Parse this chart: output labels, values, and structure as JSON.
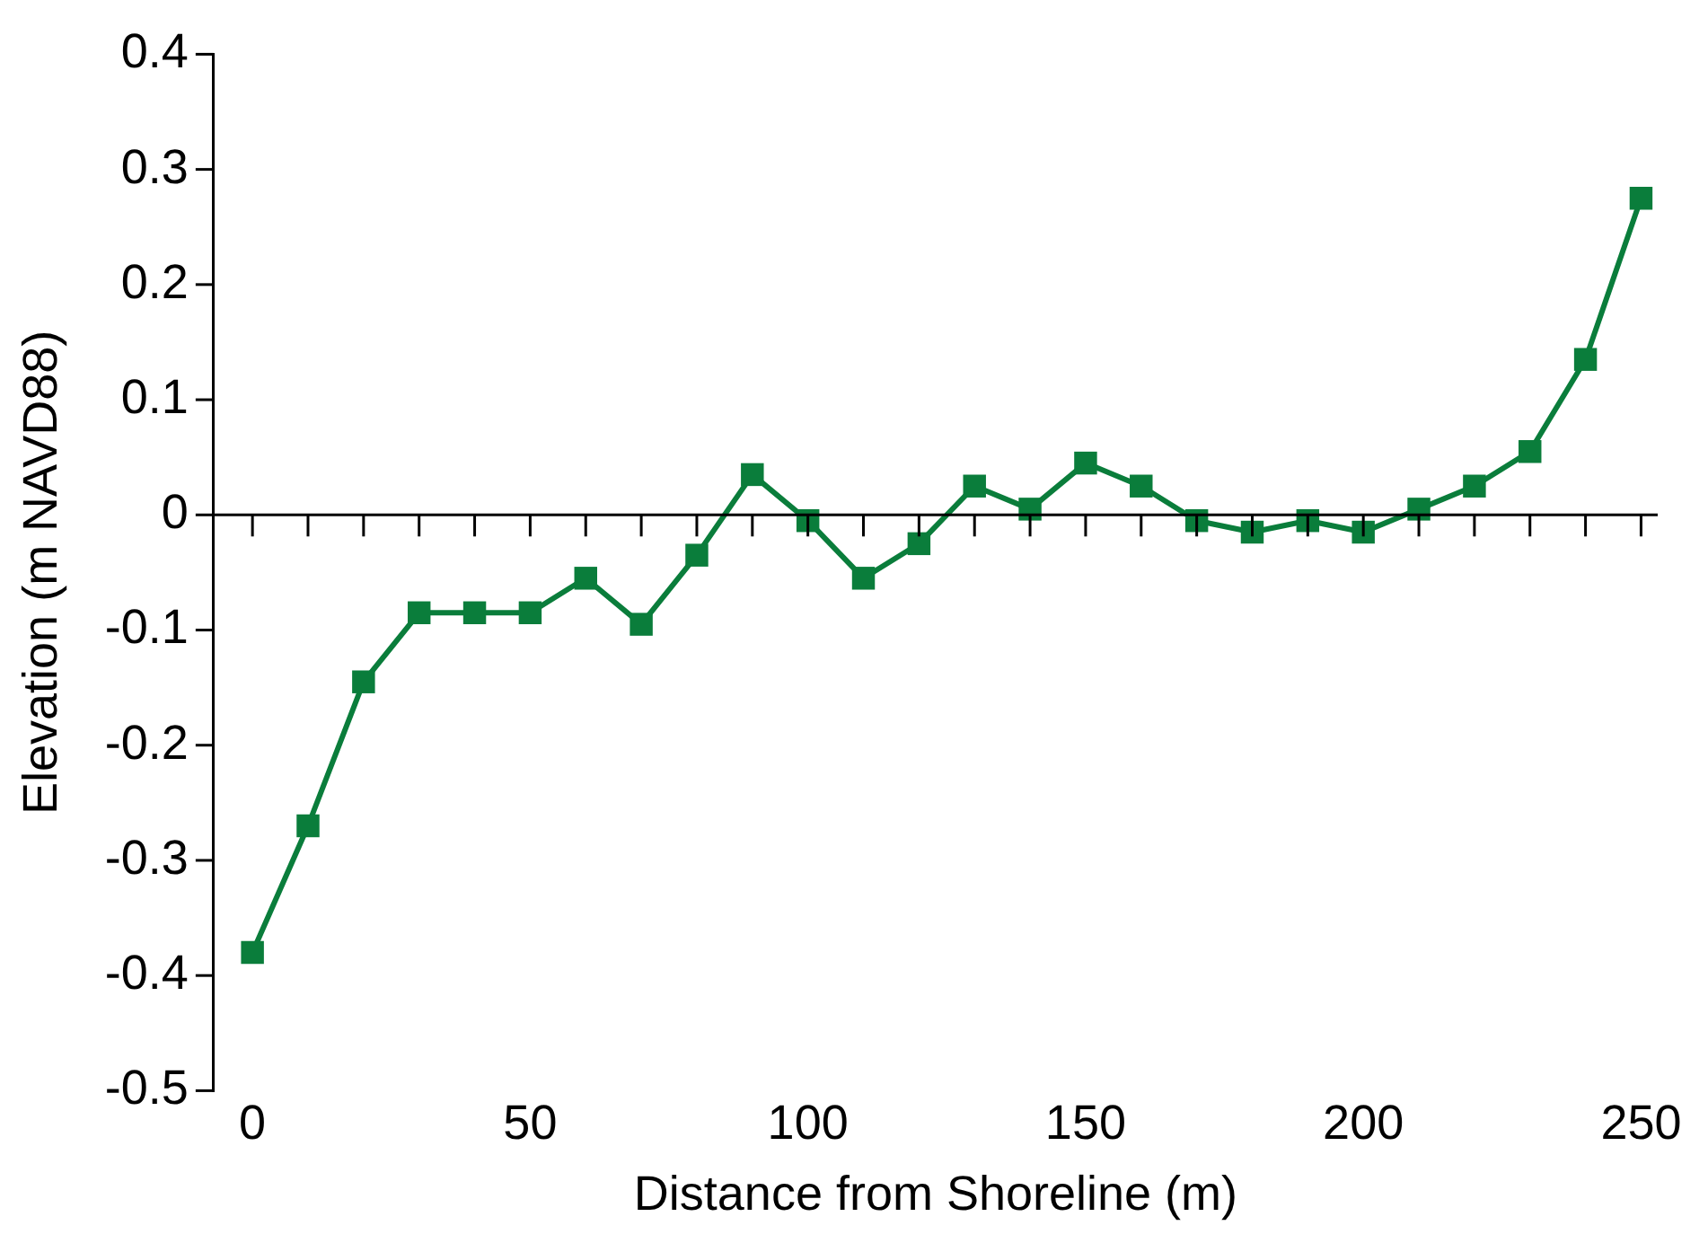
{
  "chart_data": {
    "type": "line",
    "xlabel": "Distance from Shoreline (m)",
    "ylabel": "Elevation (m NAVD88)",
    "x": [
      0,
      10,
      20,
      30,
      40,
      50,
      60,
      70,
      80,
      90,
      100,
      110,
      120,
      130,
      140,
      150,
      160,
      170,
      180,
      190,
      200,
      210,
      220,
      230,
      240,
      250
    ],
    "series": [
      {
        "color": "#0a7d3b",
        "values": [
          -0.38,
          -0.27,
          -0.145,
          -0.085,
          -0.085,
          -0.085,
          -0.055,
          -0.095,
          -0.035,
          0.035,
          -0.005,
          -0.055,
          -0.025,
          0.025,
          0.005,
          0.045,
          0.025,
          -0.005,
          -0.015,
          -0.005,
          -0.015,
          0.005,
          0.025,
          0.055,
          0.135,
          0.275
        ]
      }
    ],
    "xlim": [
      -7,
      253
    ],
    "xticks": [
      0,
      {
        "value": 10,
        "label": null
      },
      {
        "value": 20,
        "label": null
      },
      {
        "value": 30,
        "label": null
      },
      {
        "value": 40,
        "label": null
      },
      50,
      {
        "value": 60,
        "label": null
      },
      {
        "value": 70,
        "label": null
      },
      {
        "value": 80,
        "label": null
      },
      {
        "value": 90,
        "label": null
      },
      100,
      {
        "value": 110,
        "label": null
      },
      {
        "value": 120,
        "label": null
      },
      {
        "value": 130,
        "label": null
      },
      {
        "value": 140,
        "label": null
      },
      150,
      {
        "value": 160,
        "label": null
      },
      {
        "value": 170,
        "label": null
      },
      {
        "value": 180,
        "label": null
      },
      {
        "value": 190,
        "label": null
      },
      200,
      {
        "value": 210,
        "label": null
      },
      {
        "value": 220,
        "label": null
      },
      {
        "value": 230,
        "label": null
      },
      {
        "value": 240,
        "label": null
      },
      250
    ],
    "ylim": [
      -0.5,
      0.4
    ],
    "yticks": [
      -0.5,
      -0.4,
      -0.3,
      -0.2,
      -0.1,
      0,
      0.1,
      0.2,
      0.3,
      0.4
    ],
    "ref_lines": [
      {
        "axis": "y",
        "value": 0,
        "color": "#000000"
      }
    ],
    "grid": false,
    "legend": false,
    "marker": "square",
    "line_style": "solid"
  }
}
